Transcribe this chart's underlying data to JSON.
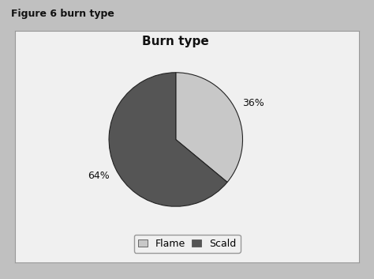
{
  "title": "Burn type",
  "figure_label": "Figure 6 burn type",
  "slices": [
    36,
    64
  ],
  "labels": [
    "Flame",
    "Scald"
  ],
  "colors": [
    "#c8c8c8",
    "#555555"
  ],
  "start_angle": 90,
  "background_color": "#cccccc",
  "box_background": "#f0f0f0",
  "outer_background": "#c0c0c0",
  "title_fontsize": 11,
  "label_fontsize": 9,
  "legend_fontsize": 9,
  "pct_distance": 1.28
}
